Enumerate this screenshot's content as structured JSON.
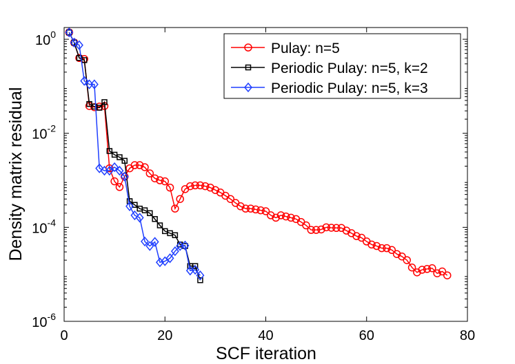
{
  "chart_data": {
    "type": "line",
    "title": "",
    "xlabel": "SCF iteration",
    "ylabel": "Density matrix residual",
    "xlim": [
      0,
      80
    ],
    "ylim_log10": [
      -6,
      0.25
    ],
    "yscale": "log",
    "grid": false,
    "legend_position": "top-right",
    "x_ticks": [
      0,
      20,
      40,
      60,
      80
    ],
    "y_ticks": [
      {
        "base": "10",
        "exp": "0",
        "value": 1
      },
      {
        "base": "10",
        "exp": "-2",
        "value": 0.01
      },
      {
        "base": "10",
        "exp": "-4",
        "value": 0.0001
      },
      {
        "base": "10",
        "exp": "-6",
        "value": 1e-06
      }
    ],
    "series": [
      {
        "name": "Pulay: n=5",
        "color": "#ff0000",
        "marker": "circle",
        "x": [
          1,
          2,
          3,
          4,
          5,
          6,
          7,
          8,
          9,
          10,
          11,
          12,
          13,
          14,
          15,
          16,
          17,
          18,
          19,
          20,
          21,
          22,
          23,
          24,
          25,
          26,
          27,
          28,
          29,
          30,
          31,
          32,
          33,
          34,
          35,
          36,
          37,
          38,
          39,
          40,
          41,
          42,
          43,
          44,
          45,
          46,
          47,
          48,
          49,
          50,
          51,
          52,
          53,
          54,
          55,
          56,
          57,
          58,
          59,
          60,
          61,
          62,
          63,
          64,
          65,
          66,
          67,
          68,
          69,
          70,
          71,
          72,
          73,
          74,
          75,
          76
        ],
        "y": [
          1.4,
          0.85,
          0.4,
          0.38,
          0.038,
          0.036,
          0.037,
          0.038,
          0.0018,
          0.00095,
          0.00072,
          0.0012,
          0.0018,
          0.0021,
          0.0021,
          0.0019,
          0.0014,
          0.0011,
          0.001,
          0.00095,
          0.0007,
          0.00025,
          0.0004,
          0.00065,
          0.00075,
          0.00078,
          0.00078,
          0.00075,
          0.0007,
          0.00062,
          0.00055,
          0.00047,
          0.0004,
          0.00033,
          0.00028,
          0.00025,
          0.00025,
          0.00024,
          0.00023,
          0.00022,
          0.00018,
          0.00016,
          0.00018,
          0.00017,
          0.00016,
          0.00015,
          0.00013,
          0.00011,
          8.8e-05,
          8.8e-05,
          9e-05,
          0.0001,
          9.8e-05,
          9.7e-05,
          9.7e-05,
          8.5e-05,
          7.5e-05,
          6.5e-05,
          6e-05,
          5e-05,
          4.3e-05,
          4e-05,
          3.6e-05,
          3.6e-05,
          3.3e-05,
          2.7e-05,
          2.4e-05,
          2e-05,
          1.4e-05,
          1.1e-05,
          1.25e-05,
          1.3e-05,
          1.35e-05,
          1.05e-05,
          1.15e-05,
          9.5e-06
        ]
      },
      {
        "name": "Periodic Pulay: n=5, k=2",
        "color": "#000000",
        "marker": "square",
        "x": [
          1,
          2,
          3,
          4,
          5,
          6,
          7,
          8,
          9,
          10,
          11,
          12,
          13,
          14,
          15,
          16,
          17,
          18,
          19,
          20,
          21,
          22,
          23,
          24,
          25,
          26,
          27
        ],
        "y": [
          1.4,
          0.85,
          0.4,
          0.36,
          0.042,
          0.037,
          0.035,
          0.046,
          0.0042,
          0.0035,
          0.0031,
          0.0026,
          0.00036,
          0.0003,
          0.00025,
          0.00023,
          0.0002,
          0.00015,
          0.00011,
          8.3e-05,
          7.5e-05,
          6.8e-05,
          4.3e-05,
          4e-05,
          1.5e-05,
          1.5e-05,
          7.5e-06
        ]
      },
      {
        "name": "Periodic Pulay: n=5, k=3",
        "color": "#1f3fff",
        "marker": "diamond",
        "x": [
          1,
          2,
          3,
          4,
          5,
          6,
          7,
          8,
          9,
          10,
          11,
          12,
          13,
          14,
          15,
          16,
          17,
          18,
          19,
          20,
          21,
          22,
          23,
          24,
          25,
          26,
          27
        ],
        "y": [
          1.4,
          0.85,
          0.75,
          0.13,
          0.11,
          0.11,
          0.0018,
          0.0016,
          0.0016,
          0.0019,
          0.0016,
          0.0012,
          0.00028,
          0.00018,
          0.00016,
          5e-05,
          4e-05,
          4.9e-05,
          1.8e-05,
          1.9e-05,
          2.2e-05,
          3.1e-05,
          4e-05,
          4.1e-05,
          1.2e-05,
          1.25e-05,
          9.5e-06
        ]
      }
    ]
  }
}
